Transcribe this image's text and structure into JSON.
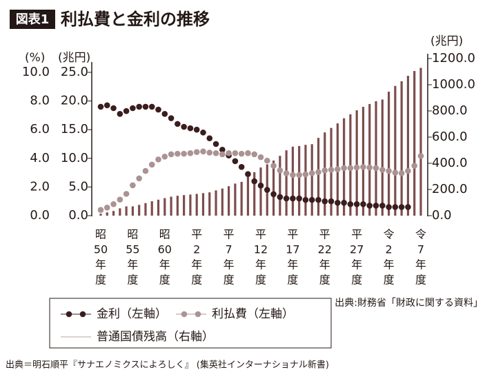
{
  "chart_data": {
    "type": "bar-dot",
    "tag": "図表1",
    "title": "利払費と金利の推移",
    "y_label": "(%)",
    "y3_label": "(兆円)",
    "y2_label": "(兆円)",
    "source": "出典:財務省「財政に関する資料」",
    "credit": "出典＝明石順平『サナエノミクスによろしく』 (集英社インターナショナル新書)",
    "categories": [
      [
        "昭",
        "50",
        "年",
        "度"
      ],
      null,
      null,
      null,
      null,
      [
        "昭",
        "55",
        "年",
        "度"
      ],
      null,
      null,
      null,
      null,
      [
        "昭",
        "60",
        "年",
        "度"
      ],
      null,
      null,
      null,
      null,
      [
        "平",
        "2",
        "年",
        "度"
      ],
      null,
      null,
      null,
      null,
      [
        "平",
        "7",
        "年",
        "度"
      ],
      null,
      null,
      null,
      null,
      [
        "平",
        "12",
        "年",
        "度"
      ],
      null,
      null,
      null,
      null,
      [
        "平",
        "17",
        "年",
        "度"
      ],
      null,
      null,
      null,
      null,
      [
        "平",
        "22",
        "年",
        "度"
      ],
      null,
      null,
      null,
      null,
      [
        "平",
        "27",
        "年",
        "度"
      ],
      null,
      null,
      null,
      null,
      [
        "令",
        "2",
        "年",
        "度"
      ],
      null,
      null,
      null,
      null,
      [
        "令",
        "7",
        "年",
        "度"
      ]
    ],
    "ylim": [
      0,
      10
    ],
    "yticks": [
      {
        "value": 0,
        "label": "0.0"
      },
      {
        "value": 2,
        "label": "2.0"
      },
      {
        "value": 4,
        "label": "4.0"
      },
      {
        "value": 6,
        "label": "6.0"
      },
      {
        "value": 8,
        "label": "8.0"
      },
      {
        "value": 10,
        "label": "10.0"
      }
    ],
    "y3lim": [
      0,
      25
    ],
    "y3ticks": [
      {
        "value": 0,
        "label": "0.0"
      },
      {
        "value": 5,
        "label": "5.0"
      },
      {
        "value": 10,
        "label": "10.0"
      },
      {
        "value": 15,
        "label": "15.0"
      },
      {
        "value": 20,
        "label": "20.0"
      },
      {
        "value": 25,
        "label": "25.0"
      }
    ],
    "y2lim": [
      0,
      1200
    ],
    "y2ticks": [
      {
        "value": 0,
        "label": "0.0"
      },
      {
        "value": 200,
        "label": "200.0"
      },
      {
        "value": 400,
        "label": "400.0"
      },
      {
        "value": 600,
        "label": "600.0"
      },
      {
        "value": 800,
        "label": "800.0"
      },
      {
        "value": 1000,
        "label": "1000.0"
      },
      {
        "value": 1200,
        "label": "1200.0"
      }
    ],
    "series": [
      {
        "name": "金利（左軸）",
        "color": "#3b1d1d",
        "axis": "y",
        "kind": "dot",
        "values": [
          7.6,
          7.7,
          7.5,
          7.1,
          7.3,
          7.5,
          7.6,
          7.6,
          7.6,
          7.4,
          7.1,
          6.8,
          6.4,
          6.2,
          6.1,
          6.0,
          5.8,
          5.4,
          5.0,
          4.6,
          4.2,
          3.8,
          3.4,
          2.9,
          2.4,
          2.1,
          1.8,
          1.5,
          1.3,
          1.2,
          1.2,
          1.2,
          1.1,
          1.1,
          1.1,
          1.0,
          1.0,
          0.9,
          0.9,
          0.8,
          0.8,
          0.8,
          0.7,
          0.7,
          0.7,
          0.6,
          0.6,
          0.6,
          0.6,
          null,
          null
        ]
      },
      {
        "name": "利払費（左軸）",
        "color": "#ab9393",
        "axis": "y3",
        "kind": "dot",
        "values": [
          1.0,
          1.4,
          2.0,
          2.8,
          3.8,
          5.3,
          6.5,
          7.8,
          8.9,
          9.8,
          10.3,
          10.7,
          10.8,
          10.8,
          10.9,
          11.1,
          11.2,
          11.0,
          10.9,
          10.7,
          10.9,
          10.9,
          10.8,
          10.9,
          10.7,
          10.2,
          9.6,
          8.7,
          7.9,
          7.4,
          7.1,
          7.1,
          7.2,
          7.4,
          7.6,
          7.9,
          8.0,
          8.1,
          8.3,
          8.3,
          8.4,
          8.5,
          8.4,
          8.3,
          8.0,
          7.8,
          7.5,
          7.4,
          7.8,
          8.7,
          10.4
        ]
      },
      {
        "name": "普通国債残高（右軸）",
        "color": "#7d4c4c",
        "axis": "y2",
        "kind": "bar",
        "values": [
          15,
          25,
          36,
          56,
          71,
          71,
          82,
          96,
          110,
          122,
          134,
          145,
          152,
          157,
          161,
          166,
          172,
          178,
          193,
          207,
          225,
          245,
          258,
          295,
          332,
          368,
          392,
          421,
          457,
          499,
          527,
          532,
          541,
          546,
          594,
          636,
          670,
          705,
          744,
          774,
          805,
          831,
          853,
          874,
          887,
          947,
          991,
          1027,
          1068,
          1105,
          1129
        ]
      }
    ]
  }
}
